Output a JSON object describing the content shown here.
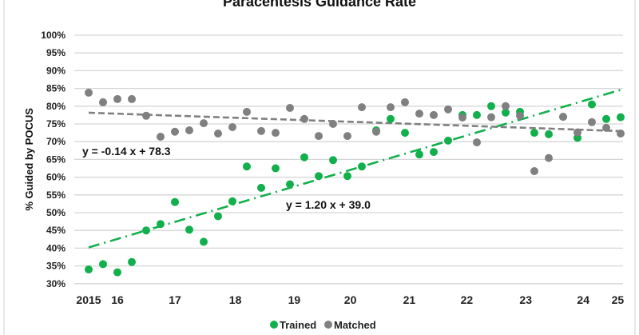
{
  "chart_data": {
    "type": "scatter",
    "title": "Paracentesis Guidance Rate",
    "ylabel": "% Guided by POCUS",
    "xlabel": "",
    "ylim": [
      30,
      100
    ],
    "yticks": [
      "30%",
      "35%",
      "40%",
      "45%",
      "50%",
      "55%",
      "60%",
      "65%",
      "70%",
      "75%",
      "80%",
      "85%",
      "90%",
      "95%",
      "100%"
    ],
    "xlim": [
      1,
      38
    ],
    "xticks": [
      {
        "x": 1,
        "label": "2015"
      },
      {
        "x": 3,
        "label": "16"
      },
      {
        "x": 7,
        "label": "17"
      },
      {
        "x": 11.2,
        "label": "18"
      },
      {
        "x": 15.3,
        "label": "19"
      },
      {
        "x": 19.2,
        "label": "20"
      },
      {
        "x": 23.3,
        "label": "21"
      },
      {
        "x": 27.3,
        "label": "22"
      },
      {
        "x": 31.4,
        "label": "23"
      },
      {
        "x": 35.4,
        "label": "24"
      },
      {
        "x": 37.8,
        "label": "25"
      }
    ],
    "grid": true,
    "legend_position": "bottom",
    "series": [
      {
        "name": "Trained",
        "color": "#12b04c",
        "values": [
          34.0,
          35.5,
          33.2,
          36.1,
          45.0,
          46.8,
          53.0,
          45.2,
          41.8,
          49.0,
          53.2,
          63.0,
          57.0,
          62.5,
          58.0,
          65.6,
          60.3,
          64.8,
          60.3,
          63.0,
          73.2,
          76.4,
          72.5,
          66.4,
          67.1,
          70.3,
          77.5,
          77.5,
          80.0,
          78.2,
          78.4,
          72.5,
          72.1,
          77.0,
          71.1,
          80.5,
          76.4,
          76.9
        ],
        "trendline": {
          "slope": 1.2,
          "intercept": 39.0,
          "label": "y = 1.20 x  +  39.0",
          "style": "dash-dot"
        }
      },
      {
        "name": "Matched",
        "color": "#808080",
        "values": [
          83.8,
          81.1,
          82.0,
          82.0,
          77.3,
          71.4,
          72.8,
          73.2,
          75.2,
          72.3,
          74.1,
          78.4,
          73.0,
          72.5,
          79.5,
          76.4,
          71.6,
          75.0,
          71.6,
          79.7,
          72.8,
          79.7,
          81.1,
          77.9,
          77.5,
          79.1,
          76.8,
          69.8,
          76.9,
          80.0,
          77.3,
          61.7,
          65.4,
          77.0,
          72.6,
          75.5,
          73.9,
          72.3
        ],
        "trendline": {
          "slope": -0.14,
          "intercept": 78.3,
          "label": "y = -0.14 x  +  78.3",
          "style": "dashed"
        }
      }
    ]
  }
}
